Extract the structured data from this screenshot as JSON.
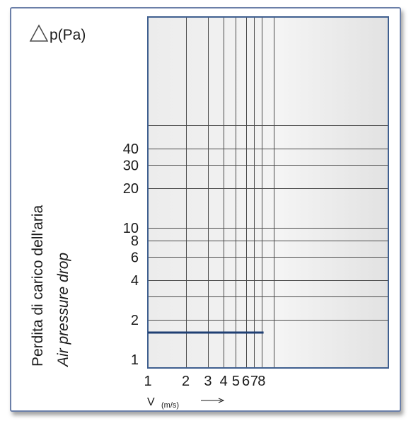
{
  "chart_data": {
    "type": "line",
    "x_scale": "log",
    "y_scale": "log",
    "xlim": [
      1,
      10
    ],
    "ylim": [
      1,
      100
    ],
    "x_ticks": [
      1,
      2,
      3,
      4,
      5,
      6,
      7,
      8
    ],
    "x_tick_labels": [
      "1",
      "2",
      "3",
      "4",
      "5",
      "6",
      "7",
      "8"
    ],
    "y_ticks": [
      1,
      2,
      4,
      6,
      8,
      10,
      20,
      30,
      40
    ],
    "y_tick_labels": [
      "1",
      "2",
      "4",
      "6",
      "8",
      "10",
      "20",
      "30",
      "40"
    ],
    "grid": true,
    "ylabel_top": "p(Pa)",
    "ylabel_line1": "Perdita di carico dell'aria",
    "ylabel_line2": "Air pressure drop",
    "xlabel_symbol": "V",
    "xlabel_unit": "(m/s)",
    "series": [
      {
        "x": [
          1,
          8.3
        ],
        "y": [
          1.6,
          1.6
        ],
        "color": "#1f3f73"
      }
    ]
  }
}
